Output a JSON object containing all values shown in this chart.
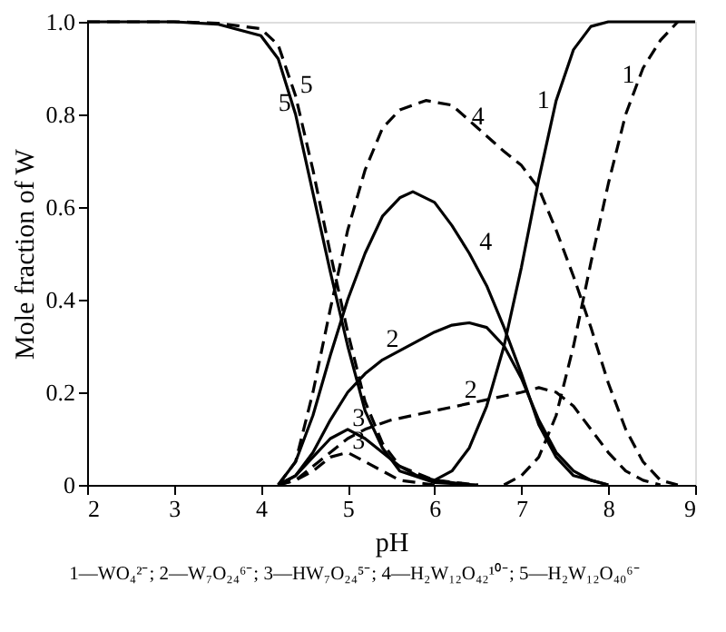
{
  "chart_data": {
    "type": "line",
    "xlabel": "pH",
    "ylabel": "Mole fraction of W",
    "xlim": [
      2,
      9
    ],
    "xticks": [
      2,
      3,
      4,
      5,
      6,
      7,
      8,
      9
    ],
    "ylim": [
      0,
      1
    ],
    "yticks": [
      {
        "value": 0,
        "label": "0"
      },
      0.2,
      0.4,
      0.6,
      0.8,
      {
        "value": 1,
        "label": "1.0"
      }
    ],
    "grid": false,
    "annotations": [
      "1—WO₄²⁻; 2—W₇O₂₄⁶⁻; 3—HW₇O₂₄⁵⁻; 4—H₂W₁₂O₄₂¹⁰⁻; 5—H₂W₁₂O₄₀⁶⁻"
    ],
    "series": [
      {
        "name": "1",
        "color": "#000000",
        "line_style": "solid",
        "x": [
          6,
          6.2,
          6.4,
          6.6,
          6.8,
          7,
          7.2,
          7.4,
          7.6,
          7.8,
          8,
          9
        ],
        "values": [
          0.01,
          0.03,
          0.08,
          0.17,
          0.3,
          0.47,
          0.66,
          0.83,
          0.94,
          0.99,
          1,
          1
        ]
      },
      {
        "name": "1",
        "color": "#000000",
        "line_style": "dashed",
        "x": [
          6.8,
          7,
          7.2,
          7.4,
          7.6,
          7.8,
          8,
          8.2,
          8.4,
          8.6,
          8.8
        ],
        "values": [
          0,
          0.02,
          0.06,
          0.15,
          0.3,
          0.48,
          0.65,
          0.8,
          0.9,
          0.96,
          1
        ]
      },
      {
        "name": "2",
        "color": "#000000",
        "line_style": "solid",
        "x": [
          4.2,
          4.4,
          4.6,
          4.8,
          5,
          5.2,
          5.4,
          5.6,
          5.8,
          6,
          6.2,
          6.4,
          6.6,
          6.8,
          7,
          7.2,
          7.4,
          7.6,
          7.8,
          8
        ],
        "values": [
          0,
          0.02,
          0.07,
          0.14,
          0.2,
          0.24,
          0.27,
          0.29,
          0.31,
          0.33,
          0.345,
          0.35,
          0.34,
          0.3,
          0.23,
          0.14,
          0.07,
          0.03,
          0.01,
          0
        ]
      },
      {
        "name": "2",
        "color": "#000000",
        "line_style": "dashed",
        "x": [
          4.2,
          4.4,
          4.6,
          4.8,
          5,
          5.2,
          5.5,
          6,
          6.5,
          7,
          7.2,
          7.4,
          7.6,
          7.8,
          8,
          8.2,
          8.4,
          8.6
        ],
        "values": [
          0,
          0.01,
          0.04,
          0.07,
          0.1,
          0.12,
          0.14,
          0.16,
          0.18,
          0.2,
          0.21,
          0.2,
          0.17,
          0.12,
          0.07,
          0.03,
          0.01,
          0
        ]
      },
      {
        "name": "3",
        "color": "#000000",
        "line_style": "solid",
        "x": [
          4.2,
          4.4,
          4.6,
          4.8,
          5,
          5.2,
          5.4,
          5.6,
          5.8,
          6,
          6.4
        ],
        "values": [
          0,
          0.02,
          0.06,
          0.1,
          0.12,
          0.1,
          0.07,
          0.04,
          0.02,
          0.01,
          0
        ]
      },
      {
        "name": "3",
        "color": "#000000",
        "line_style": "dashed",
        "x": [
          4.2,
          4.4,
          4.6,
          4.8,
          5,
          5.2,
          5.4,
          5.6,
          6
        ],
        "values": [
          0,
          0.01,
          0.03,
          0.06,
          0.07,
          0.05,
          0.03,
          0.01,
          0
        ]
      },
      {
        "name": "4",
        "color": "#000000",
        "line_style": "solid",
        "x": [
          4.2,
          4.4,
          4.6,
          4.8,
          5,
          5.2,
          5.4,
          5.6,
          5.75,
          6,
          6.2,
          6.4,
          6.6,
          6.8,
          7,
          7.2,
          7.4,
          7.6,
          8
        ],
        "values": [
          0,
          0.05,
          0.15,
          0.28,
          0.4,
          0.5,
          0.58,
          0.62,
          0.633,
          0.61,
          0.56,
          0.5,
          0.43,
          0.34,
          0.24,
          0.13,
          0.06,
          0.02,
          0
        ]
      },
      {
        "name": "4",
        "color": "#000000",
        "line_style": "dashed",
        "x": [
          4.2,
          4.4,
          4.6,
          4.8,
          5,
          5.2,
          5.4,
          5.6,
          5.9,
          6.2,
          6.5,
          6.8,
          7,
          7.2,
          7.4,
          7.6,
          7.8,
          8,
          8.2,
          8.4,
          8.6,
          8.8
        ],
        "values": [
          0,
          0.05,
          0.2,
          0.38,
          0.55,
          0.68,
          0.77,
          0.81,
          0.83,
          0.82,
          0.77,
          0.72,
          0.69,
          0.64,
          0.55,
          0.45,
          0.34,
          0.22,
          0.12,
          0.05,
          0.01,
          0
        ]
      },
      {
        "name": "5",
        "color": "#000000",
        "line_style": "solid",
        "x": [
          2,
          3,
          3.5,
          4,
          4.2,
          4.4,
          4.6,
          4.8,
          5,
          5.2,
          5.4,
          5.6,
          6,
          6.5
        ],
        "values": [
          1,
          1,
          0.995,
          0.97,
          0.92,
          0.8,
          0.63,
          0.46,
          0.3,
          0.16,
          0.08,
          0.03,
          0.005,
          0
        ]
      },
      {
        "name": "5",
        "color": "#000000",
        "line_style": "dashed",
        "x": [
          2,
          3,
          3.5,
          4,
          4.2,
          4.4,
          4.6,
          4.8,
          5,
          5.2,
          5.4,
          5.6,
          6,
          6.5
        ],
        "values": [
          1,
          1,
          0.997,
          0.985,
          0.95,
          0.84,
          0.68,
          0.5,
          0.33,
          0.18,
          0.09,
          0.04,
          0.01,
          0
        ]
      }
    ]
  }
}
